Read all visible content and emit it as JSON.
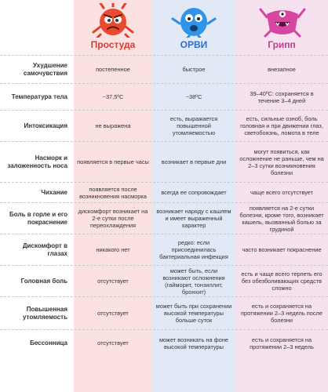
{
  "columns": {
    "cold": "Простуда",
    "orvi": "ОРВИ",
    "flu": "Грипп"
  },
  "colors": {
    "cold": "#d83a35",
    "orvi": "#2a6fd0",
    "flu": "#c23d8d"
  },
  "rows": [
    {
      "label": "Ухудшение самочувствия",
      "cold": "постепенное",
      "orvi": "быстрое",
      "flu": "внезапное"
    },
    {
      "label": "Температура тела",
      "cold": "~37,5ºС",
      "orvi": "~38ºС",
      "flu": "39–40ºС: сохраняется в течение 3–4 дней"
    },
    {
      "label": "Интоксикация",
      "cold": "не выражена",
      "orvi": "есть, выражается повышенной утомляемостью",
      "flu": "есть, сильные озноб, боль головная и при движении глаз, светобоязнь, ломота в теле"
    },
    {
      "label": "Насморк и заложенность носа",
      "cold": "появляется в первые часы",
      "orvi": "возникает в первые дни",
      "flu": "могут появиться, как осложнение не раньше, чем на 2–3 сутки возникновения болезни"
    },
    {
      "label": "Чихание",
      "cold": "появляется после возникновения насморка",
      "orvi": "всегда ее сопровождает",
      "flu": "чаще всего отсутствует"
    },
    {
      "label": "Боль в горле и его покраснение",
      "cold": "дискомфорт возникает на 2-е сутки после переохлаждения",
      "orvi": "возникает наряду с кашлем и имеет выраженный характер",
      "flu": "появляется на 2-е сутки болезни, кроме того, возникает кашель, вызванный болью за грудиной"
    },
    {
      "label": "Дискомфорт в глазах",
      "cold": "никакого нет",
      "orvi": "редко: если присоединилась бактериальная инфекция",
      "flu": "часто возникает покраснение"
    },
    {
      "label": "Головная боль",
      "cold": "отсутствует",
      "orvi": "может быть, если возникают осложнения (гайморит, тонзиллит, бронхит)",
      "flu": "есть и чаще всего терпеть его без обезболивающих средств сложно"
    },
    {
      "label": "Повышенная утомляемость",
      "cold": "отсутствует",
      "orvi": "может быть при сохранении высокой температуры больше суток",
      "flu": "есть и сохраняется на протяжении 2–3 недель после болезни"
    },
    {
      "label": "Бессонница",
      "cold": "отсутствует",
      "orvi": "может возникать на фоне высокой температуры",
      "flu": "есть и сохраняется на протяжении 2–3 недель"
    }
  ],
  "mascots": {
    "cold": "red-virus-mascot-icon",
    "orvi": "blue-virus-mascot-icon",
    "flu": "pink-virus-mascot-icon"
  }
}
